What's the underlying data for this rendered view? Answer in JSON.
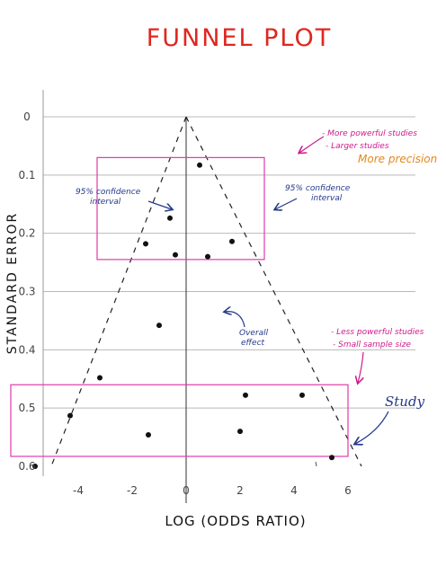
{
  "chart_data": {
    "type": "scatter",
    "title": "FUNNEL PLOT",
    "xlabel": "LOG (ODDS RATIO)",
    "ylabel": "STANDARD ERROR",
    "xlim": [
      -5.3,
      8.5
    ],
    "ylim": [
      0,
      0.6
    ],
    "y_inverted": true,
    "grid": "horizontal",
    "x_ticks": [
      "-4",
      "-2",
      "0",
      "2",
      "4",
      "6"
    ],
    "y_ticks": [
      "0",
      "0.1",
      "0.2",
      "0.3",
      "0.4",
      "0.5",
      "0.6"
    ],
    "overall_effect": 0,
    "funnel": {
      "apex": [
        0,
        0
      ],
      "base_left": [
        -5.0,
        0.6
      ],
      "base_right": [
        6.5,
        0.6
      ]
    },
    "points": [
      {
        "x": 0.5,
        "y": 0.083
      },
      {
        "x": -0.6,
        "y": 0.174
      },
      {
        "x": -1.5,
        "y": 0.218
      },
      {
        "x": -0.4,
        "y": 0.237
      },
      {
        "x": 0.8,
        "y": 0.24
      },
      {
        "x": 1.7,
        "y": 0.214
      },
      {
        "x": -1.0,
        "y": 0.358
      },
      {
        "x": -3.2,
        "y": 0.448
      },
      {
        "x": -4.3,
        "y": 0.513
      },
      {
        "x": -1.4,
        "y": 0.546
      },
      {
        "x": 2.2,
        "y": 0.478
      },
      {
        "x": 4.3,
        "y": 0.478
      },
      {
        "x": 2.0,
        "y": 0.54
      },
      {
        "x": 5.4,
        "y": 0.585
      },
      {
        "x": -5.6,
        "y": 0.6
      }
    ],
    "highlight_boxes": [
      {
        "x0": -3.3,
        "x1": 2.9,
        "y0": 0.07,
        "y1": 0.245
      },
      {
        "x0": -6.5,
        "x1": 6.0,
        "y0": 0.46,
        "y1": 0.583
      }
    ]
  },
  "annotations": {
    "ci_left_1": "95% confidence",
    "ci_left_2": "interval",
    "ci_right_1": "95% confidence",
    "ci_right_2": "interval",
    "more_1": "- More powerful studies",
    "more_2": "- Larger studies",
    "more_precision": "More precision",
    "overall_1": "Overall",
    "overall_2": "effect",
    "less_1": "- Less powerful studies",
    "less_2": "- Small sample size",
    "study": "Study"
  },
  "colors": {
    "title": "#e0261f",
    "box": "#e03aa9",
    "ink_blue": "#23398a",
    "pink_text": "#d0198a",
    "orange_text": "#e2891c",
    "grid": "#b9b9b9"
  }
}
